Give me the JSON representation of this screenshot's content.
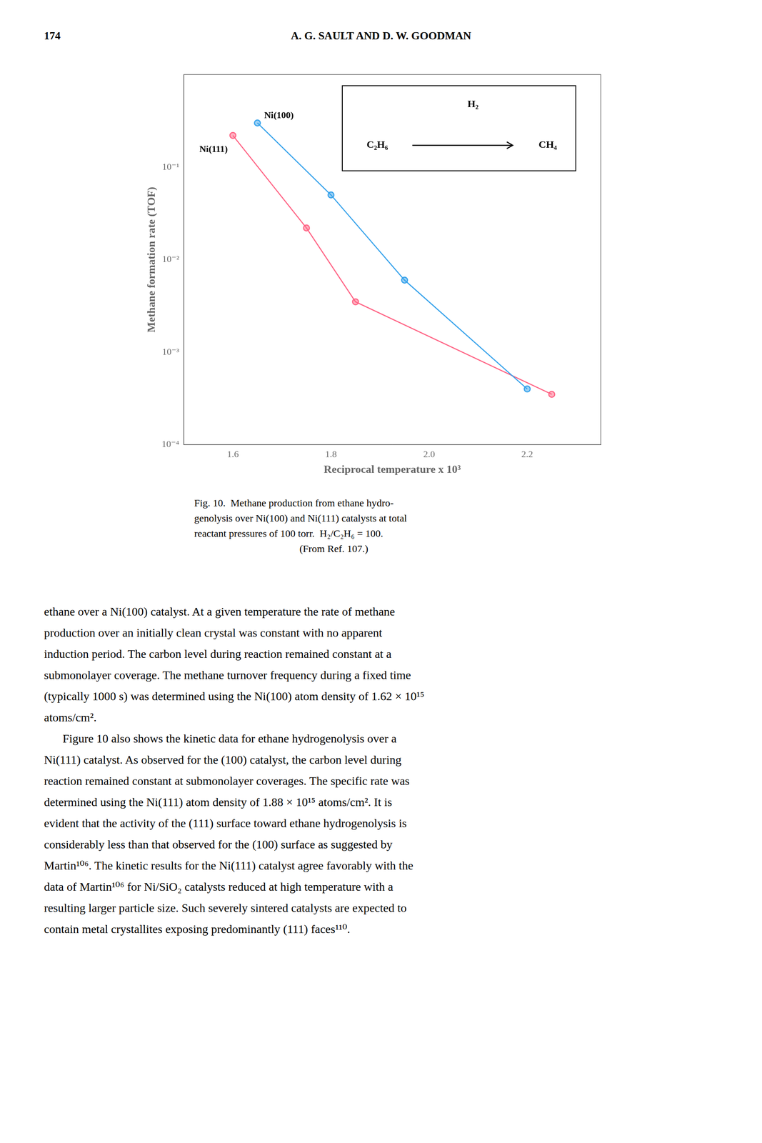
{
  "chart_data": {
    "type": "line",
    "xlabel": "Reciprocal temperature x 10³",
    "ylabel": "Methane formation rate (TOF)",
    "log": "y",
    "grid": false,
    "xlim": [
      1.5,
      2.35
    ],
    "xticks": [
      1.6,
      1.8,
      {
        "value": 2.0,
        "label": "2.0"
      },
      2.2
    ],
    "ylim": [
      0.0001,
      1.0
    ],
    "yticks": [
      {
        "value": 0.0001,
        "label": "10⁻⁴"
      },
      {
        "value": 0.001,
        "label": "10⁻³"
      },
      {
        "value": 0.01,
        "label": "10⁻²"
      },
      {
        "value": 0.1,
        "label": "10⁻¹"
      }
    ],
    "series": [
      {
        "name": "Ni(100)",
        "x": [
          1.65,
          1.8,
          1.95,
          2.2
        ],
        "values": [
          0.3,
          0.05,
          0.006,
          0.0004
        ],
        "marker": "circle",
        "line_style": "solid"
      },
      {
        "name": "Ni(111)",
        "x": [
          1.6,
          1.75,
          1.85,
          2.25
        ],
        "values": [
          0.22,
          0.022,
          0.0035,
          0.00035
        ],
        "marker": "circle",
        "line_style": "solid"
      }
    ],
    "reaction": {
      "over_arrow": "H₂",
      "from": "C₂H₆",
      "to": "CH₄"
    }
  },
  "page_header": [
    "174",
    "A. G. SAULT AND D. W. GOODMAN"
  ],
  "caption": [
    "Fig. 10.  Methane production from ethane hydro-",
    "genolysis over Ni(100) and Ni(111) catalysts at total",
    "reactant pressures of 100 torr.  H₂/C₂H₆ = 100.",
    "(From Ref. 107.)"
  ],
  "body_text": [
    [
      "ethane over a Ni(100) catalyst. At a given temperature the rate of methane",
      "production over an initially clean crystal was constant with no apparent",
      "induction period. The carbon level during reaction remained constant at a",
      "submonolayer coverage. The methane turnover frequency during a fixed time",
      "(typically 1000 s) was determined using the Ni(100) atom density of 1.62 × 10¹⁵",
      "atoms/cm²."
    ],
    [
      "Figure 10 also shows the kinetic data for ethane hydrogenolysis over a",
      "Ni(111) catalyst. As observed for the (100) catalyst, the carbon level during",
      "reaction remained constant at submonolayer coverages. The specific rate was",
      "determined using the Ni(111) atom density of 1.88 × 10¹⁵ atoms/cm². It is",
      "evident that the activity of the (111) surface toward ethane hydrogenolysis is",
      "considerably less than that observed for the (100) surface as suggested by",
      "Martin¹⁰⁶. The kinetic results for the Ni(111) catalyst agree favorably with the",
      "data of Martin¹⁰⁶ for Ni/SiO₂ catalysts reduced at high temperature with a",
      "resulting larger particle size. Such severely sintered catalysts are expected to",
      "contain metal crystallites exposing predominantly (111) faces¹¹⁰."
    ]
  ]
}
